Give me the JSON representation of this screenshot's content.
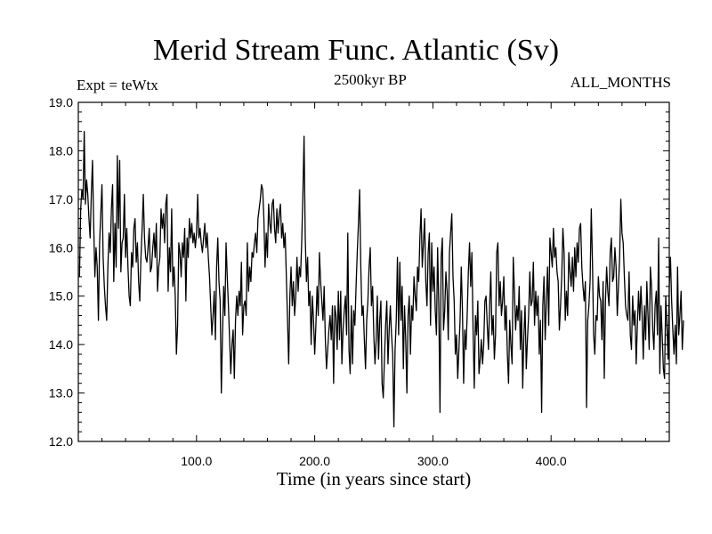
{
  "chart_data": {
    "type": "line",
    "title": "Merid Stream Func. Atlantic (Sv)",
    "subtitle_left": "Expt = teWtx",
    "subtitle_center": "2500kyr BP",
    "subtitle_right": "ALL_MONTHS",
    "xlabel": "Time (in years since start)",
    "ylabel": "",
    "xlim": [
      0,
      500
    ],
    "ylim": [
      12.0,
      19.0
    ],
    "x_ticks": [
      100,
      200,
      300,
      400
    ],
    "x_tick_labels": [
      "100.0",
      "200.0",
      "300.0",
      "400.0"
    ],
    "y_ticks": [
      12,
      13,
      14,
      15,
      16,
      17,
      18,
      19
    ],
    "y_tick_labels": [
      "12.0",
      "13.0",
      "14.0",
      "15.0",
      "16.0",
      "17.0",
      "18.0",
      "19.0"
    ],
    "grid": false,
    "series": [
      {
        "name": "Merid Stream Func. Atlantic",
        "color": "#000000",
        "x_start": 1,
        "x_step": 1,
        "values": [
          15.4,
          16.8,
          17.2,
          17.0,
          18.4,
          16.9,
          17.4,
          17.1,
          16.6,
          16.2,
          17.1,
          17.8,
          16.5,
          15.4,
          16.0,
          15.6,
          14.5,
          16.1,
          16.7,
          17.3,
          15.8,
          15.2,
          14.8,
          14.5,
          15.6,
          16.3,
          15.9,
          16.8,
          17.3,
          15.3,
          16.5,
          15.6,
          17.9,
          16.4,
          17.8,
          15.5,
          16.1,
          16.2,
          17.1,
          15.8,
          16.4,
          15.6,
          15.0,
          14.8,
          15.9,
          15.6,
          16.4,
          16.6,
          15.7,
          16.1,
          15.3,
          14.9,
          15.8,
          16.4,
          17.1,
          16.2,
          15.8,
          15.7,
          16.0,
          16.4,
          15.5,
          15.6,
          16.0,
          16.3,
          15.8,
          16.5,
          15.1,
          15.6,
          15.8,
          16.8,
          16.4,
          16.7,
          16.1,
          16.9,
          17.1,
          15.1,
          16.0,
          15.5,
          16.8,
          15.2,
          15.6,
          15.0,
          13.8,
          14.4,
          16.1,
          15.9,
          15.4,
          16.1,
          15.8,
          16.4,
          14.9,
          16.2,
          15.8,
          16.6,
          16.2,
          16.5,
          16.1,
          16.3,
          16.0,
          16.3,
          17.1,
          16.2,
          16.4,
          16.1,
          15.9,
          16.2,
          16.5,
          16.0,
          16.3,
          15.8,
          15.4,
          14.8,
          14.2,
          14.6,
          15.1,
          14.1,
          15.6,
          16.2,
          15.3,
          14.9,
          13.0,
          14.2,
          15.2,
          14.6,
          16.1,
          15.4,
          14.8,
          14.1,
          13.4,
          14.0,
          14.3,
          13.3,
          14.5,
          15.0,
          14.6,
          15.1,
          14.8,
          15.7,
          14.2,
          14.8,
          14.9,
          14.6,
          16.1,
          15.1,
          15.6,
          15.3,
          15.9,
          15.8,
          16.1,
          16.3,
          15.9,
          16.6,
          16.8,
          17.0,
          17.3,
          17.2,
          16.6,
          15.6,
          16.3,
          15.8,
          16.9,
          16.5,
          16.3,
          16.9,
          17.0,
          16.4,
          16.1,
          16.8,
          16.3,
          16.7,
          16.9,
          16.2,
          16.5,
          16.0,
          16.3,
          15.4,
          14.5,
          13.6,
          15.0,
          15.6,
          14.8,
          15.3,
          14.6,
          15.0,
          15.8,
          15.1,
          15.6,
          15.4,
          16.1,
          17.1,
          18.3,
          16.2,
          15.3,
          15.8,
          14.8,
          15.1,
          14.0,
          15.0,
          14.5,
          13.8,
          14.4,
          15.2,
          14.6,
          15.9,
          15.3,
          14.9,
          14.5,
          15.2,
          14.1,
          13.5,
          13.9,
          14.3,
          14.6,
          14.1,
          14.8,
          13.2,
          14.8,
          14.6,
          13.9,
          15.1,
          14.1,
          15.1,
          13.6,
          14.3,
          14.7,
          15.0,
          14.2,
          16.3,
          13.9,
          13.4,
          14.8,
          13.6,
          14.7,
          14.4,
          15.2,
          15.9,
          16.5,
          17.2,
          15.6,
          14.6,
          14.8,
          14.1,
          13.5,
          14.5,
          14.9,
          15.6,
          16.0,
          14.8,
          15.2,
          14.2,
          13.6,
          14.1,
          15.0,
          13.7,
          14.5,
          14.9,
          13.2,
          12.9,
          13.7,
          14.4,
          14.9,
          13.6,
          14.3,
          14.8,
          14.2,
          13.8,
          12.3,
          13.9,
          14.5,
          15.8,
          14.2,
          15.7,
          14.5,
          15.2,
          13.5,
          14.8,
          14.1,
          13.0,
          14.6,
          15.0,
          13.8,
          14.8,
          14.5,
          15.4,
          15.0,
          14.7,
          15.6,
          15.3,
          16.2,
          16.8,
          15.6,
          16.1,
          16.6,
          15.3,
          14.8,
          15.9,
          16.3,
          14.4,
          16.1,
          15.1,
          15.6,
          14.7,
          14.2,
          16.0,
          14.8,
          12.6,
          15.8,
          16.2,
          14.3,
          14.7,
          15.5,
          15.1,
          14.1,
          15.9,
          16.3,
          16.7,
          15.4,
          14.9,
          13.8,
          14.2,
          13.3,
          13.9,
          14.5,
          15.6,
          14.7,
          13.2,
          14.3,
          13.9,
          14.6,
          15.5,
          16.1,
          15.2,
          15.9,
          14.3,
          13.1,
          14.6,
          14.2,
          14.9,
          13.4,
          13.7,
          14.1,
          13.6,
          14.0,
          14.9,
          15.0,
          14.4,
          13.9,
          14.8,
          15.5,
          14.2,
          14.6,
          13.7,
          14.2,
          15.9,
          16.1,
          14.8,
          15.3,
          14.6,
          14.9,
          15.4,
          14.3,
          14.8,
          13.8,
          13.2,
          14.5,
          14.0,
          13.6,
          15.8,
          15.1,
          14.3,
          14.8,
          14.5,
          15.2,
          13.9,
          14.7,
          13.1,
          14.2,
          14.8,
          13.5,
          14.1,
          14.6,
          15.5,
          14.8,
          14.9,
          15.7,
          14.4,
          15.1,
          14.6,
          15.0,
          13.8,
          14.5,
          12.6,
          14.8,
          15.4,
          14.1,
          14.9,
          15.6,
          14.4,
          16.2,
          15.9,
          15.6,
          16.4,
          15.8,
          16.0,
          15.5,
          15.3,
          14.3,
          14.8,
          15.4,
          16.4,
          15.9,
          14.5,
          15.1,
          14.6,
          15.9,
          15.5,
          15.2,
          15.8,
          15.1,
          16.0,
          15.4,
          16.1,
          15.7,
          16.4,
          16.5,
          15.6,
          15.2,
          14.9,
          15.3,
          12.7,
          14.5,
          14.8,
          15.3,
          16.8,
          15.7,
          14.2,
          13.8,
          14.6,
          14.5,
          15.4,
          15.0,
          14.9,
          14.1,
          15.3,
          13.3,
          14.9,
          15.6,
          15.1,
          14.8,
          15.9,
          16.2,
          15.3,
          15.4,
          16.0,
          15.6,
          14.6,
          15.2,
          15.8,
          17.0,
          16.3,
          16.1,
          15.4,
          14.8,
          14.6,
          14.5,
          15.5,
          14.2,
          13.9,
          15.0,
          14.4,
          14.7,
          13.6,
          14.4,
          15.1,
          14.5,
          15.2,
          14.6,
          13.7,
          14.8,
          14.1,
          15.3,
          14.6,
          13.9,
          15.6,
          15.2,
          14.3,
          13.9,
          14.8,
          15.1,
          14.2,
          16.2,
          13.4,
          14.8,
          14.2,
          13.5,
          13.3,
          15.0,
          14.4,
          13.7,
          15.2,
          15.8,
          14.9,
          14.3,
          13.8,
          14.4,
          13.6,
          15.6,
          14.2,
          14.6,
          15.1,
          13.9,
          14.5
        ]
      }
    ]
  }
}
